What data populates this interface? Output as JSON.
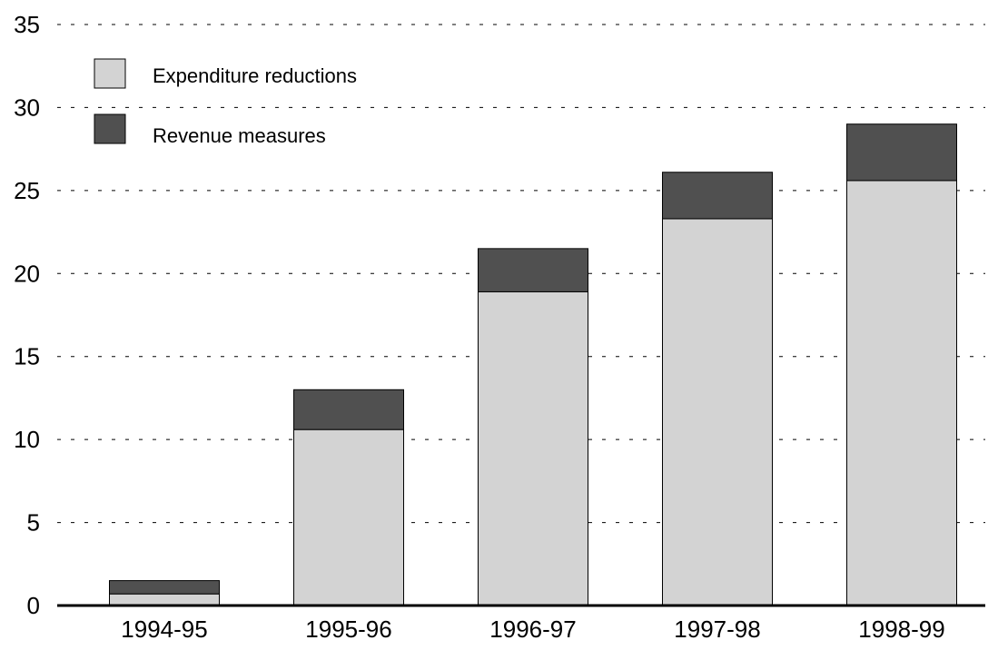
{
  "chart_data": {
    "type": "bar",
    "stacked": true,
    "categories": [
      "1994-95",
      "1995-96",
      "1996-97",
      "1997-98",
      "1998-99"
    ],
    "series": [
      {
        "name": "Expenditure reductions",
        "color": "#d3d3d3",
        "values": [
          0.7,
          10.6,
          18.9,
          23.3,
          25.6
        ]
      },
      {
        "name": "Revenue measures",
        "color": "#505050",
        "values": [
          0.8,
          2.4,
          2.6,
          2.8,
          3.4
        ]
      }
    ],
    "ylim": [
      0,
      35
    ],
    "yticks": [
      "0",
      "5",
      "10",
      "15",
      "20",
      "25",
      "30",
      "35"
    ],
    "grid": true,
    "legend": "top-left",
    "title": "",
    "xlabel": "",
    "ylabel": ""
  }
}
